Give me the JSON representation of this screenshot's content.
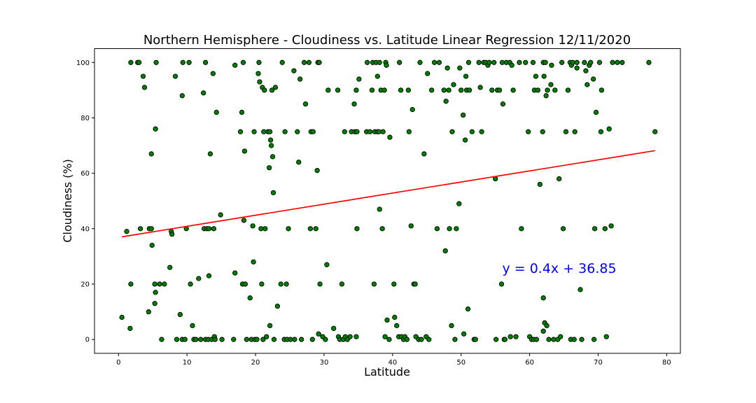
{
  "chart_data": {
    "type": "scatter",
    "title": "Northern Hemisphere - Cloudiness vs. Latitude Linear Regression 12/11/2020",
    "xlabel": "Latitude",
    "ylabel": "Cloudiness (%)",
    "xlim": [
      -3.5,
      82
    ],
    "ylim": [
      -5,
      105
    ],
    "xticks": [
      0,
      10,
      20,
      30,
      40,
      50,
      60,
      70,
      80
    ],
    "yticks": [
      0,
      20,
      40,
      60,
      80,
      100
    ],
    "grid": false,
    "marker_color": "#008000",
    "marker_edge": "#000000",
    "line_color": "#ff0000",
    "annotation": {
      "text": "y = 0.4x + 36.85",
      "x": 56,
      "y": 24,
      "color": "#0000ff"
    },
    "regression": {
      "slope": 0.4,
      "intercept": 36.85,
      "x_range": [
        0.5,
        78.3
      ]
    },
    "points": [
      [
        0.5,
        8
      ],
      [
        1.2,
        39
      ],
      [
        1.7,
        4
      ],
      [
        1.8,
        20
      ],
      [
        1.8,
        100
      ],
      [
        2.8,
        100
      ],
      [
        3.0,
        100
      ],
      [
        3.2,
        40
      ],
      [
        3.6,
        95
      ],
      [
        3.8,
        91
      ],
      [
        4.4,
        10
      ],
      [
        4.5,
        40
      ],
      [
        4.8,
        40
      ],
      [
        4.8,
        67
      ],
      [
        4.9,
        34
      ],
      [
        5.3,
        13
      ],
      [
        5.3,
        20
      ],
      [
        5.4,
        17
      ],
      [
        5.4,
        76
      ],
      [
        5.5,
        100
      ],
      [
        6.0,
        20
      ],
      [
        6.3,
        0
      ],
      [
        6.7,
        20
      ],
      [
        7.5,
        26
      ],
      [
        7.7,
        39
      ],
      [
        7.8,
        38
      ],
      [
        8.3,
        95
      ],
      [
        8.5,
        0
      ],
      [
        9.0,
        9
      ],
      [
        9.3,
        88
      ],
      [
        9.3,
        0
      ],
      [
        9.4,
        100
      ],
      [
        9.7,
        0
      ],
      [
        9.9,
        40
      ],
      [
        10.3,
        100
      ],
      [
        10.5,
        20
      ],
      [
        10.8,
        5
      ],
      [
        11.0,
        0
      ],
      [
        11.3,
        0
      ],
      [
        11.7,
        22
      ],
      [
        12.0,
        0
      ],
      [
        12.4,
        89
      ],
      [
        12.5,
        40
      ],
      [
        12.7,
        100
      ],
      [
        12.7,
        0
      ],
      [
        12.9,
        40
      ],
      [
        13.1,
        0
      ],
      [
        13.2,
        23
      ],
      [
        13.2,
        40
      ],
      [
        13.4,
        67
      ],
      [
        13.6,
        0
      ],
      [
        13.8,
        96
      ],
      [
        13.9,
        40
      ],
      [
        14.0,
        1
      ],
      [
        14.1,
        0
      ],
      [
        14.3,
        82
      ],
      [
        14.9,
        45
      ],
      [
        15.1,
        0
      ],
      [
        16.8,
        0
      ],
      [
        17.0,
        24
      ],
      [
        17.0,
        99
      ],
      [
        17.8,
        75
      ],
      [
        18.0,
        82
      ],
      [
        18.1,
        20
      ],
      [
        18.2,
        100
      ],
      [
        18.3,
        43
      ],
      [
        18.4,
        68
      ],
      [
        18.5,
        20
      ],
      [
        18.7,
        0
      ],
      [
        19.2,
        15
      ],
      [
        19.4,
        0
      ],
      [
        19.6,
        41
      ],
      [
        19.7,
        28
      ],
      [
        19.8,
        75
      ],
      [
        19.9,
        0
      ],
      [
        20.2,
        0
      ],
      [
        20.4,
        96
      ],
      [
        20.5,
        100
      ],
      [
        20.6,
        93
      ],
      [
        20.8,
        40
      ],
      [
        20.9,
        20
      ],
      [
        21.0,
        91
      ],
      [
        21.1,
        0
      ],
      [
        21.2,
        75
      ],
      [
        21.3,
        90
      ],
      [
        21.4,
        40
      ],
      [
        21.6,
        1
      ],
      [
        21.8,
        75
      ],
      [
        22.0,
        62
      ],
      [
        22.1,
        5
      ],
      [
        22.1,
        75
      ],
      [
        22.2,
        72
      ],
      [
        22.3,
        70
      ],
      [
        22.4,
        90
      ],
      [
        22.5,
        66
      ],
      [
        22.6,
        53
      ],
      [
        22.7,
        0
      ],
      [
        22.9,
        91
      ],
      [
        23.2,
        12
      ],
      [
        23.7,
        20
      ],
      [
        23.9,
        100
      ],
      [
        24.2,
        0
      ],
      [
        24.3,
        75
      ],
      [
        24.5,
        20
      ],
      [
        24.6,
        0
      ],
      [
        24.8,
        40
      ],
      [
        25.1,
        0
      ],
      [
        25.6,
        97
      ],
      [
        25.7,
        0
      ],
      [
        26.1,
        75
      ],
      [
        26.3,
        64
      ],
      [
        26.5,
        94
      ],
      [
        26.7,
        0
      ],
      [
        27.1,
        100
      ],
      [
        27.3,
        85
      ],
      [
        27.8,
        100
      ],
      [
        28.0,
        40
      ],
      [
        28.1,
        75
      ],
      [
        28.3,
        0
      ],
      [
        28.4,
        75
      ],
      [
        28.8,
        40
      ],
      [
        29.0,
        61
      ],
      [
        29.1,
        100
      ],
      [
        29.2,
        2
      ],
      [
        29.3,
        100
      ],
      [
        29.4,
        20
      ],
      [
        29.8,
        1
      ],
      [
        30.2,
        0
      ],
      [
        30.4,
        27
      ],
      [
        30.6,
        90
      ],
      [
        31.4,
        4
      ],
      [
        32.0,
        90
      ],
      [
        32.1,
        1
      ],
      [
        32.3,
        0
      ],
      [
        32.6,
        20
      ],
      [
        32.8,
        0
      ],
      [
        33.0,
        75
      ],
      [
        33.1,
        1
      ],
      [
        33.4,
        0
      ],
      [
        33.8,
        1
      ],
      [
        34.0,
        75
      ],
      [
        34.4,
        85
      ],
      [
        34.5,
        75
      ],
      [
        34.7,
        90
      ],
      [
        34.7,
        1
      ],
      [
        34.8,
        40
      ],
      [
        34.8,
        75
      ],
      [
        35.1,
        94
      ],
      [
        36.2,
        75
      ],
      [
        36.3,
        100
      ],
      [
        36.7,
        75
      ],
      [
        37.0,
        90
      ],
      [
        37.1,
        100
      ],
      [
        37.3,
        20
      ],
      [
        37.4,
        75
      ],
      [
        37.6,
        100
      ],
      [
        37.8,
        75
      ],
      [
        37.8,
        95
      ],
      [
        38.0,
        75
      ],
      [
        38.1,
        100
      ],
      [
        38.1,
        47
      ],
      [
        38.3,
        90
      ],
      [
        38.5,
        40
      ],
      [
        38.6,
        75
      ],
      [
        38.8,
        90
      ],
      [
        38.9,
        1
      ],
      [
        39.0,
        100
      ],
      [
        39.1,
        99
      ],
      [
        39.2,
        7
      ],
      [
        39.5,
        0
      ],
      [
        39.6,
        73
      ],
      [
        40.2,
        20
      ],
      [
        40.3,
        8
      ],
      [
        40.6,
        5
      ],
      [
        40.9,
        1
      ],
      [
        41.0,
        100
      ],
      [
        41.2,
        90
      ],
      [
        41.3,
        1
      ],
      [
        41.6,
        0
      ],
      [
        41.8,
        1
      ],
      [
        42.1,
        0
      ],
      [
        42.3,
        90
      ],
      [
        42.4,
        75
      ],
      [
        42.7,
        41
      ],
      [
        42.9,
        83
      ],
      [
        43.1,
        20
      ],
      [
        43.3,
        20
      ],
      [
        43.4,
        1
      ],
      [
        43.8,
        0
      ],
      [
        44.0,
        100
      ],
      [
        44.2,
        0
      ],
      [
        44.6,
        67
      ],
      [
        44.9,
        1
      ],
      [
        45.1,
        96
      ],
      [
        45.3,
        0
      ],
      [
        45.7,
        90
      ],
      [
        46.1,
        100
      ],
      [
        46.5,
        40
      ],
      [
        46.8,
        100
      ],
      [
        47.5,
        90
      ],
      [
        47.7,
        32
      ],
      [
        47.8,
        86
      ],
      [
        48.0,
        98
      ],
      [
        48.2,
        90
      ],
      [
        48.3,
        40
      ],
      [
        48.6,
        5
      ],
      [
        48.7,
        75
      ],
      [
        48.9,
        92
      ],
      [
        49.1,
        0
      ],
      [
        49.3,
        40
      ],
      [
        49.7,
        49
      ],
      [
        49.8,
        98
      ],
      [
        50.0,
        90
      ],
      [
        50.3,
        81
      ],
      [
        50.4,
        2
      ],
      [
        50.6,
        72
      ],
      [
        50.7,
        95
      ],
      [
        50.8,
        90
      ],
      [
        51.0,
        11
      ],
      [
        51.1,
        100
      ],
      [
        51.2,
        90
      ],
      [
        51.6,
        75
      ],
      [
        51.9,
        0
      ],
      [
        52.1,
        0
      ],
      [
        52.6,
        100
      ],
      [
        52.8,
        91
      ],
      [
        53.0,
        75
      ],
      [
        53.3,
        100
      ],
      [
        53.6,
        100
      ],
      [
        53.9,
        99
      ],
      [
        54.1,
        100
      ],
      [
        54.5,
        90
      ],
      [
        54.8,
        100
      ],
      [
        55.0,
        58
      ],
      [
        55.1,
        0
      ],
      [
        55.3,
        90
      ],
      [
        55.6,
        90
      ],
      [
        55.9,
        20
      ],
      [
        56.0,
        100
      ],
      [
        56.1,
        85
      ],
      [
        56.3,
        0
      ],
      [
        56.4,
        0
      ],
      [
        56.6,
        100
      ],
      [
        57.1,
        100
      ],
      [
        57.2,
        1
      ],
      [
        57.4,
        99
      ],
      [
        57.6,
        90
      ],
      [
        58.0,
        1
      ],
      [
        58.5,
        100
      ],
      [
        58.8,
        40
      ],
      [
        59.4,
        100
      ],
      [
        59.8,
        75
      ],
      [
        60.0,
        1
      ],
      [
        60.3,
        0
      ],
      [
        60.5,
        100
      ],
      [
        60.6,
        0
      ],
      [
        60.7,
        90
      ],
      [
        60.9,
        95
      ],
      [
        61.0,
        0
      ],
      [
        61.2,
        90
      ],
      [
        61.5,
        56
      ],
      [
        61.9,
        75
      ],
      [
        62.0,
        3
      ],
      [
        62.0,
        15
      ],
      [
        62.0,
        100
      ],
      [
        62.1,
        95
      ],
      [
        62.2,
        6
      ],
      [
        62.3,
        100
      ],
      [
        62.4,
        88
      ],
      [
        62.5,
        5
      ],
      [
        62.6,
        90
      ],
      [
        62.8,
        0
      ],
      [
        63.1,
        92
      ],
      [
        63.2,
        99
      ],
      [
        63.5,
        0
      ],
      [
        63.7,
        90
      ],
      [
        64.1,
        0
      ],
      [
        64.3,
        58
      ],
      [
        64.5,
        1
      ],
      [
        64.7,
        100
      ],
      [
        64.9,
        40
      ],
      [
        65.3,
        75
      ],
      [
        65.6,
        90
      ],
      [
        65.9,
        100
      ],
      [
        66.0,
        0
      ],
      [
        66.1,
        99
      ],
      [
        66.3,
        100
      ],
      [
        66.5,
        0
      ],
      [
        66.6,
        75
      ],
      [
        66.9,
        98
      ],
      [
        66.9,
        100
      ],
      [
        67.4,
        18
      ],
      [
        67.6,
        0
      ],
      [
        68.0,
        100
      ],
      [
        68.2,
        97
      ],
      [
        68.4,
        92
      ],
      [
        68.7,
        99
      ],
      [
        68.9,
        100
      ],
      [
        69.3,
        94
      ],
      [
        69.4,
        0
      ],
      [
        69.5,
        40
      ],
      [
        69.7,
        82
      ],
      [
        70.2,
        100
      ],
      [
        70.4,
        75
      ],
      [
        70.5,
        90
      ],
      [
        71.0,
        40
      ],
      [
        71.2,
        1
      ],
      [
        71.6,
        76
      ],
      [
        71.9,
        41
      ],
      [
        72.1,
        100
      ],
      [
        72.8,
        100
      ],
      [
        73.5,
        100
      ],
      [
        77.4,
        100
      ],
      [
        78.3,
        75
      ]
    ]
  }
}
